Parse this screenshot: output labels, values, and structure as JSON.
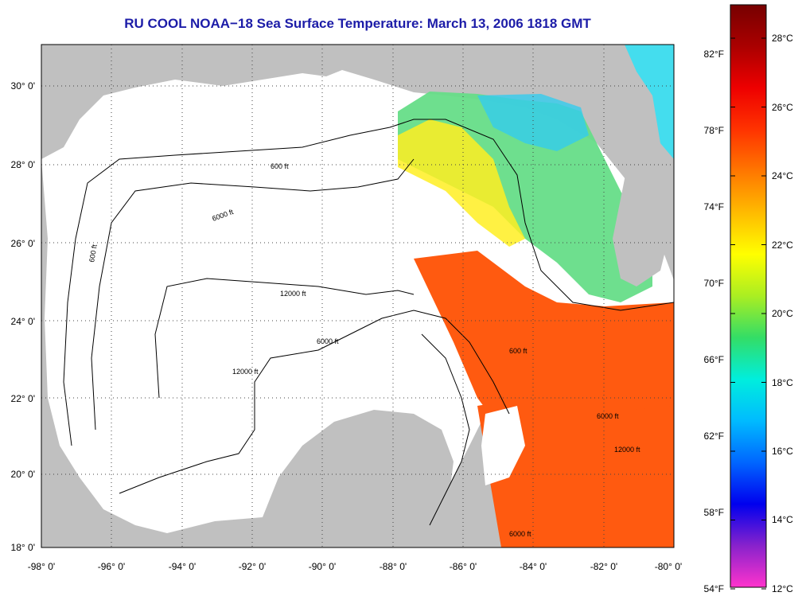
{
  "title": "RU COOL  NOAA−18  Sea Surface Temperature:  March 13, 2006 1818 GMT",
  "map": {
    "land_color": "#c0c0c0",
    "nodata_color": "#ffffff",
    "gridlines": "dotted",
    "lon_ticks": [
      "-98° 0'",
      "-96° 0'",
      "-94° 0'",
      "-92° 0'",
      "-90° 0'",
      "-88° 0'",
      "-86° 0'",
      "-84° 0'",
      "-82° 0'",
      "-80° 0'"
    ],
    "lat_ticks": [
      "30° 0'",
      "28° 0'",
      "26° 0'",
      "24° 0'",
      "22° 0'",
      "20° 0'",
      "18° 0'"
    ],
    "fahrenheit_ticks": [
      "82°F",
      "78°F",
      "74°F",
      "70°F",
      "66°F",
      "62°F",
      "58°F",
      "54°F"
    ],
    "contour_labels": [
      "600 ft",
      "6000 ft",
      "12000 ft"
    ]
  },
  "colorbar": {
    "labels": [
      "28°C",
      "26°C",
      "24°C",
      "22°C",
      "20°C",
      "18°C",
      "16°C",
      "14°C",
      "12°C"
    ],
    "stops": [
      "#ff33cc",
      "#8822cc",
      "#0000ee",
      "#0066ff",
      "#00bbff",
      "#00eedd",
      "#33dd66",
      "#aaee22",
      "#ffff00",
      "#ffbb00",
      "#ff7700",
      "#ff3300",
      "#ee0000",
      "#aa0000",
      "#770000"
    ]
  }
}
